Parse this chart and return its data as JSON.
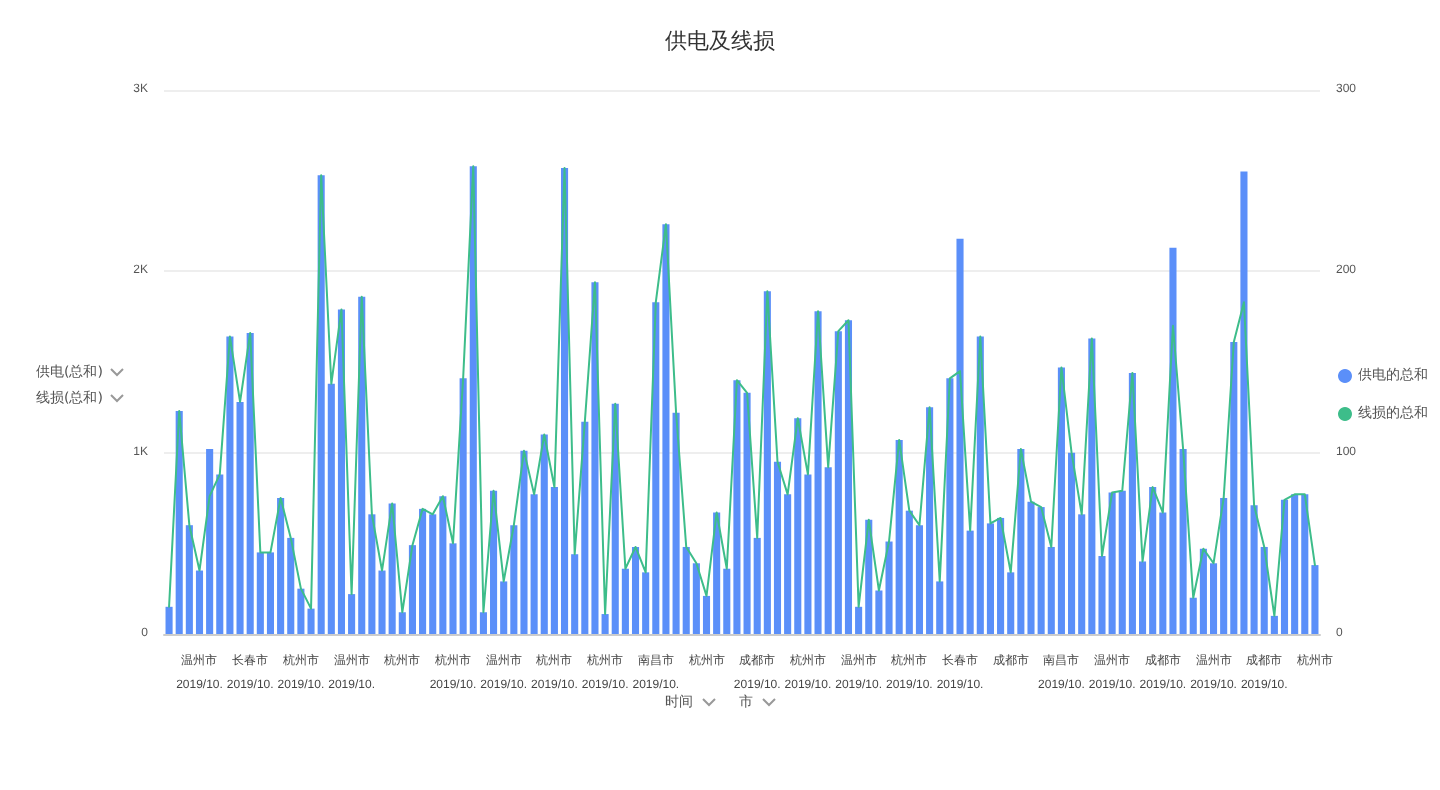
{
  "chart_data": {
    "type": "bar",
    "title": "供电及线损",
    "xlabel": "时间 市",
    "annotations": [
      "供电(总和)",
      "线损(总和)"
    ],
    "categories": [
      null,
      null,
      null,
      "温州市\n2019/10.",
      null,
      null,
      null,
      null,
      "长春市\n2019/10.",
      null,
      null,
      null,
      null,
      "杭州市\n2019/10.",
      null,
      null,
      null,
      null,
      "温州市\n2019/10.",
      null,
      null,
      null,
      null,
      "杭州市",
      null,
      null,
      null,
      null,
      "杭州市\n2019/10.",
      null,
      null,
      null,
      null,
      "温州市\n2019/10.",
      null,
      null,
      null,
      null,
      "杭州市\n2019/10.",
      null,
      null,
      null,
      null,
      "杭州市\n2019/10.",
      null,
      null,
      null,
      null,
      "南昌市\n2019/10.",
      null,
      null,
      null,
      null,
      "杭州市",
      null,
      null,
      null,
      null,
      "成都市\n2019/10.",
      null,
      null,
      null,
      null,
      "杭州市\n2019/10.",
      null,
      null,
      null,
      null,
      "温州市\n2019/10.",
      null,
      null,
      null,
      null,
      "杭州市\n2019/10.",
      null,
      null,
      null,
      null,
      "长春市\n2019/10.",
      null,
      null,
      null,
      null,
      "成都市",
      null,
      null,
      null,
      null,
      "南昌市\n2019/10.",
      null,
      null,
      null,
      null,
      "温州市\n2019/10.",
      null,
      null,
      null,
      null,
      "成都市\n2019/10.",
      null,
      null,
      null,
      null,
      "温州市\n2019/10.",
      null,
      null,
      null,
      null,
      "成都市\n2019/10.",
      null,
      null,
      null,
      null,
      "杭州市"
    ],
    "series": [
      {
        "name": "供电的总和",
        "color": "#5b8ff9",
        "values": [
          150,
          1230,
          600,
          350,
          1020,
          880,
          1640,
          1280,
          1660,
          450,
          450,
          750,
          530,
          250,
          140,
          2530,
          1380,
          1790,
          220,
          1860,
          660,
          350,
          720,
          120,
          490,
          690,
          660,
          760,
          500,
          1410,
          2580,
          120,
          790,
          290,
          600,
          1010,
          770,
          1100,
          810,
          2570,
          440,
          1170,
          1940,
          110,
          1270,
          360,
          480,
          340,
          1830,
          2260,
          1220,
          480,
          390,
          210,
          670,
          360,
          1400,
          1330,
          530,
          1890,
          950,
          770,
          1190,
          880,
          1780,
          920,
          1670,
          1730,
          150,
          630,
          240,
          510,
          1070,
          680,
          600,
          1250,
          290,
          1410,
          2180,
          570,
          1640,
          610,
          640,
          340,
          1020,
          730,
          700,
          480,
          1470,
          1000,
          660,
          1630,
          430,
          780,
          790,
          1440,
          400,
          810,
          670,
          2130,
          1020,
          200,
          470,
          390,
          750,
          1610,
          2550,
          710,
          480,
          100,
          740,
          770,
          770,
          380
        ]
      },
      {
        "name": "线损的总和",
        "type": "line",
        "axis": "y2",
        "color": "#3dbd8a",
        "values": [
          15,
          123,
          60,
          35,
          76,
          88,
          164,
          128,
          166,
          45,
          45,
          75,
          53,
          25,
          14,
          253,
          138,
          179,
          22,
          186,
          66,
          35,
          72,
          12,
          49,
          69,
          66,
          76,
          50,
          141,
          258,
          12,
          79,
          29,
          60,
          101,
          77,
          110,
          81,
          257,
          44,
          117,
          194,
          11,
          127,
          36,
          48,
          34,
          183,
          226,
          122,
          48,
          39,
          21,
          67,
          36,
          140,
          133,
          53,
          189,
          95,
          77,
          119,
          88,
          178,
          92,
          167,
          173,
          15,
          63,
          24,
          51,
          107,
          68,
          60,
          125,
          29,
          141,
          145,
          57,
          164,
          61,
          64,
          34,
          102,
          73,
          70,
          48,
          147,
          100,
          66,
          163,
          43,
          78,
          79,
          144,
          40,
          81,
          67,
          170,
          102,
          20,
          47,
          39,
          75,
          161,
          183,
          71,
          48,
          10,
          74,
          77,
          77,
          38
        ]
      }
    ],
    "ylim": [
      0,
      3000
    ],
    "yticks": [
      0,
      {
        "value": 1000,
        "label": "1K"
      },
      {
        "value": 2000,
        "label": "2K"
      },
      {
        "value": 3000,
        "label": "3K"
      }
    ],
    "y2lim": [
      0,
      300
    ],
    "y2ticks": [
      0,
      100,
      200,
      300
    ],
    "grid": "y",
    "legend": "right",
    "marker": "none",
    "line_style": "solid"
  }
}
